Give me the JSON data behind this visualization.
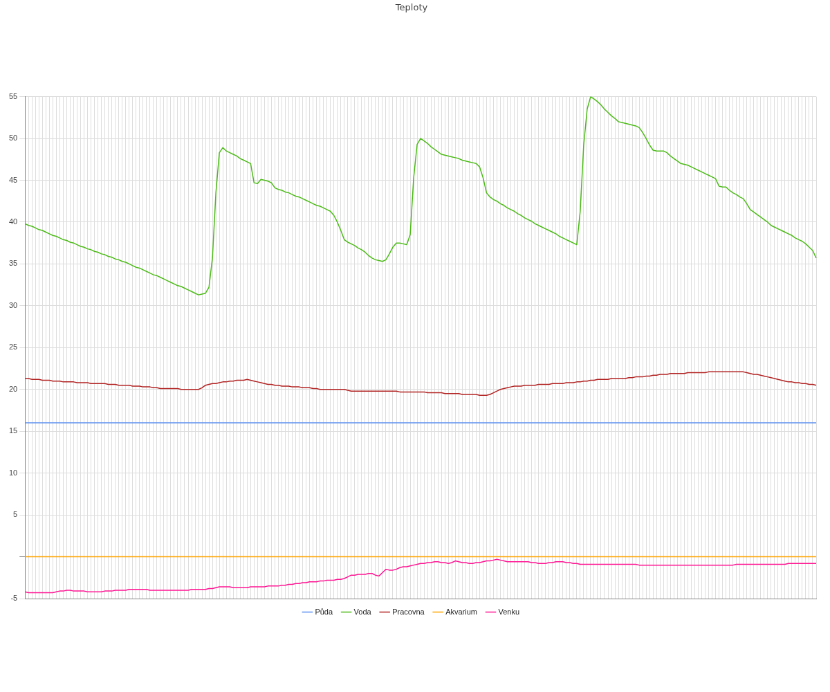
{
  "chart_data": {
    "type": "line",
    "title": "Teploty",
    "categories": [
      null,
      null,
      null,
      null,
      null,
      null,
      null,
      null,
      null,
      null,
      null,
      null,
      null,
      null,
      null,
      null,
      null,
      null,
      null,
      null,
      null,
      null,
      null,
      null,
      null,
      null,
      null,
      null,
      null,
      null,
      null,
      null,
      null,
      null,
      null,
      null,
      null,
      null,
      null,
      null,
      null,
      null,
      null,
      null,
      null,
      null,
      null,
      null,
      null,
      null,
      null,
      null,
      null,
      null,
      null,
      null,
      null,
      null,
      null,
      null,
      null,
      null,
      null,
      null,
      null,
      null,
      null,
      null,
      null,
      null,
      null,
      null,
      null,
      null,
      null,
      null,
      null,
      null,
      null,
      null,
      null,
      null,
      null,
      null,
      null,
      null,
      null,
      null,
      null,
      null,
      null,
      null,
      null,
      null,
      null,
      null,
      null,
      null,
      null,
      null,
      null,
      null,
      null,
      null,
      null,
      null,
      null,
      null,
      null,
      null,
      null,
      null,
      null,
      null,
      null,
      null,
      null,
      null,
      null,
      null,
      null,
      null,
      null,
      null,
      null,
      null,
      null,
      null,
      null,
      null,
      null,
      null,
      null,
      null,
      null,
      null,
      null,
      null,
      null,
      null,
      null,
      null,
      null,
      null,
      null,
      null,
      null,
      null,
      null,
      null,
      null,
      null,
      null,
      null,
      null,
      null,
      null,
      null,
      null,
      null,
      null,
      null,
      null,
      null,
      null,
      null,
      null,
      null,
      null,
      null,
      null,
      null,
      null,
      null,
      null,
      null,
      null,
      null,
      null,
      null,
      null,
      null,
      null,
      null,
      null,
      null,
      null,
      null,
      null,
      null,
      null,
      null,
      null,
      null,
      null,
      null,
      null,
      null,
      null,
      null,
      null,
      null,
      null,
      null,
      null,
      null,
      null,
      null,
      null,
      null,
      null,
      null,
      null,
      null,
      null,
      null,
      null,
      null,
      null,
      null,
      null,
      null,
      null,
      null,
      null,
      null,
      null,
      null,
      null
    ],
    "ylim": [
      -5,
      55
    ],
    "yticks": [
      -5,
      {
        "value": 0,
        "label": null
      },
      5,
      10,
      15,
      20,
      25,
      30,
      35,
      40,
      45,
      50,
      55
    ],
    "grid": true,
    "legend": "bottom",
    "tick_labels": "y",
    "marker": "none",
    "series": [
      {
        "name": "Půda",
        "color": "#5b8ff0",
        "values": [
          16,
          16,
          16,
          16,
          16,
          16,
          16,
          16,
          16,
          16,
          16,
          16,
          16,
          16,
          16,
          16,
          16,
          16,
          16,
          16,
          16,
          16,
          16,
          16,
          16,
          16,
          16,
          16,
          16,
          16,
          16,
          16,
          16,
          16,
          16,
          16,
          16,
          16,
          16,
          16,
          16,
          16,
          16,
          16,
          16,
          16,
          16,
          16,
          16,
          16,
          16,
          16,
          16,
          16,
          16,
          16,
          16,
          16,
          16,
          16,
          16,
          16,
          16,
          16,
          16,
          16,
          16,
          16,
          16,
          16,
          16,
          16,
          16,
          16,
          16,
          16,
          16,
          16,
          16,
          16,
          16,
          16,
          16,
          16,
          16,
          16,
          16,
          16,
          16,
          16,
          16,
          16,
          16,
          16,
          16,
          16,
          16,
          16,
          16,
          16,
          16,
          16,
          16,
          16,
          16,
          16,
          16,
          16,
          16,
          16,
          16,
          16,
          16,
          16,
          16,
          16,
          16,
          16,
          16,
          16,
          16,
          16,
          16,
          16,
          16,
          16,
          16,
          16,
          16,
          16,
          16,
          16,
          16,
          16,
          16,
          16,
          16,
          16,
          16,
          16,
          16,
          16,
          16,
          16,
          16,
          16,
          16,
          16,
          16,
          16,
          16,
          16,
          16,
          16,
          16,
          16,
          16,
          16,
          16,
          16,
          16,
          16,
          16,
          16,
          16,
          16,
          16,
          16,
          16,
          16,
          16,
          16,
          16,
          16,
          16,
          16,
          16,
          16,
          16,
          16,
          16,
          16,
          16,
          16,
          16,
          16,
          16,
          16,
          16,
          16,
          16,
          16,
          16,
          16,
          16,
          16,
          16,
          16,
          16,
          16,
          16,
          16,
          16,
          16,
          16,
          16,
          16,
          16,
          16,
          16,
          16,
          16,
          16,
          16,
          16,
          16,
          16,
          16,
          16,
          16,
          16,
          16,
          16,
          16,
          16,
          16,
          16,
          16,
          16
        ]
      },
      {
        "name": "Voda",
        "color": "#4cbb17",
        "values": [
          39.8,
          39.6,
          39.5,
          39.3,
          39.1,
          39.0,
          38.8,
          38.6,
          38.4,
          38.3,
          38.1,
          37.9,
          37.8,
          37.6,
          37.5,
          37.3,
          37.1,
          37.0,
          36.8,
          36.7,
          36.5,
          36.4,
          36.2,
          36.1,
          35.9,
          35.8,
          35.6,
          35.5,
          35.3,
          35.2,
          35.0,
          34.8,
          34.6,
          34.5,
          34.3,
          34.1,
          33.9,
          33.7,
          33.6,
          33.4,
          33.2,
          33.0,
          32.8,
          32.6,
          32.4,
          32.3,
          32.1,
          31.9,
          31.7,
          31.5,
          31.3,
          31.4,
          31.5,
          32.2,
          35.7,
          43.5,
          48.3,
          48.9,
          48.5,
          48.3,
          48.1,
          47.9,
          47.6,
          47.4,
          47.2,
          47.0,
          44.7,
          44.6,
          45.1,
          45.0,
          44.9,
          44.7,
          44.1,
          43.9,
          43.8,
          43.6,
          43.5,
          43.3,
          43.1,
          43.0,
          42.8,
          42.6,
          42.4,
          42.2,
          42.0,
          41.9,
          41.7,
          41.5,
          41.3,
          40.8,
          40.0,
          39.0,
          37.9,
          37.6,
          37.4,
          37.2,
          36.9,
          36.7,
          36.4,
          36.0,
          35.7,
          35.5,
          35.4,
          35.3,
          35.5,
          36.2,
          37.0,
          37.5,
          37.5,
          37.4,
          37.3,
          38.5,
          45.3,
          49.3,
          50.0,
          49.7,
          49.4,
          49.0,
          48.7,
          48.4,
          48.1,
          48.0,
          47.9,
          47.8,
          47.7,
          47.6,
          47.4,
          47.3,
          47.2,
          47.1,
          47.0,
          46.6,
          45.3,
          43.5,
          43.0,
          42.7,
          42.5,
          42.2,
          42.0,
          41.7,
          41.5,
          41.3,
          41.0,
          40.8,
          40.5,
          40.3,
          40.1,
          39.8,
          39.6,
          39.4,
          39.2,
          39.0,
          38.8,
          38.6,
          38.3,
          38.1,
          37.9,
          37.7,
          37.5,
          37.3,
          41.3,
          49.2,
          53.5,
          55.0,
          54.7,
          54.4,
          54.0,
          53.5,
          53.1,
          52.7,
          52.4,
          52.0,
          51.9,
          51.8,
          51.7,
          51.6,
          51.5,
          51.3,
          50.7,
          50.0,
          49.2,
          48.6,
          48.5,
          48.5,
          48.5,
          48.3,
          47.9,
          47.6,
          47.3,
          47.0,
          46.9,
          46.8,
          46.6,
          46.4,
          46.2,
          46.0,
          45.8,
          45.6,
          45.4,
          45.2,
          44.3,
          44.2,
          44.2,
          43.8,
          43.5,
          43.3,
          43.0,
          42.8,
          42.2,
          41.5,
          41.2,
          40.9,
          40.6,
          40.3,
          40.0,
          39.6,
          39.4,
          39.2,
          39.0,
          38.8,
          38.6,
          38.4,
          38.1,
          37.9,
          37.7,
          37.4,
          37.0,
          36.6,
          35.7
        ]
      },
      {
        "name": "Pracovna",
        "color": "#b22222",
        "values": [
          21.3,
          21.3,
          21.2,
          21.2,
          21.2,
          21.1,
          21.1,
          21.1,
          21.0,
          21.0,
          21.0,
          20.9,
          20.9,
          20.9,
          20.9,
          20.8,
          20.8,
          20.8,
          20.8,
          20.7,
          20.7,
          20.7,
          20.7,
          20.7,
          20.6,
          20.6,
          20.6,
          20.5,
          20.5,
          20.5,
          20.5,
          20.4,
          20.4,
          20.4,
          20.3,
          20.3,
          20.3,
          20.2,
          20.2,
          20.1,
          20.1,
          20.1,
          20.1,
          20.1,
          20.1,
          20.0,
          20.0,
          20.0,
          20.0,
          20.0,
          20.0,
          20.2,
          20.5,
          20.6,
          20.7,
          20.7,
          20.8,
          20.9,
          20.9,
          21.0,
          21.0,
          21.1,
          21.1,
          21.1,
          21.2,
          21.1,
          21.0,
          20.9,
          20.8,
          20.7,
          20.6,
          20.6,
          20.5,
          20.5,
          20.4,
          20.4,
          20.4,
          20.3,
          20.3,
          20.3,
          20.2,
          20.2,
          20.2,
          20.1,
          20.1,
          20.0,
          20.0,
          20.0,
          20.0,
          20.0,
          20.0,
          20.0,
          20.0,
          19.9,
          19.8,
          19.8,
          19.8,
          19.8,
          19.8,
          19.8,
          19.8,
          19.8,
          19.8,
          19.8,
          19.8,
          19.8,
          19.8,
          19.8,
          19.7,
          19.7,
          19.7,
          19.7,
          19.7,
          19.7,
          19.7,
          19.7,
          19.6,
          19.6,
          19.6,
          19.6,
          19.6,
          19.5,
          19.5,
          19.5,
          19.5,
          19.5,
          19.4,
          19.4,
          19.4,
          19.4,
          19.4,
          19.3,
          19.3,
          19.3,
          19.4,
          19.6,
          19.8,
          20.0,
          20.1,
          20.2,
          20.3,
          20.4,
          20.4,
          20.4,
          20.5,
          20.5,
          20.5,
          20.5,
          20.6,
          20.6,
          20.6,
          20.6,
          20.7,
          20.7,
          20.7,
          20.7,
          20.8,
          20.8,
          20.8,
          20.9,
          20.9,
          21.0,
          21.0,
          21.1,
          21.1,
          21.2,
          21.2,
          21.2,
          21.2,
          21.3,
          21.3,
          21.3,
          21.3,
          21.3,
          21.4,
          21.4,
          21.5,
          21.5,
          21.5,
          21.6,
          21.6,
          21.7,
          21.7,
          21.8,
          21.8,
          21.8,
          21.9,
          21.9,
          21.9,
          21.9,
          21.9,
          22.0,
          22.0,
          22.0,
          22.0,
          22.0,
          22.0,
          22.1,
          22.1,
          22.1,
          22.1,
          22.1,
          22.1,
          22.1,
          22.1,
          22.1,
          22.1,
          22.1,
          22.0,
          21.9,
          21.8,
          21.8,
          21.7,
          21.6,
          21.5,
          21.4,
          21.3,
          21.2,
          21.1,
          21.0,
          20.9,
          20.9,
          20.8,
          20.8,
          20.7,
          20.7,
          20.6,
          20.6,
          20.5
        ]
      },
      {
        "name": "Akvarium",
        "color": "#ffa500",
        "values": [
          0,
          0,
          0,
          0,
          0,
          0,
          0,
          0,
          0,
          0,
          0,
          0,
          0,
          0,
          0,
          0,
          0,
          0,
          0,
          0,
          0,
          0,
          0,
          0,
          0,
          0,
          0,
          0,
          0,
          0,
          0,
          0,
          0,
          0,
          0,
          0,
          0,
          0,
          0,
          0,
          0,
          0,
          0,
          0,
          0,
          0,
          0,
          0,
          0,
          0,
          0,
          0,
          0,
          0,
          0,
          0,
          0,
          0,
          0,
          0,
          0,
          0,
          0,
          0,
          0,
          0,
          0,
          0,
          0,
          0,
          0,
          0,
          0,
          0,
          0,
          0,
          0,
          0,
          0,
          0,
          0,
          0,
          0,
          0,
          0,
          0,
          0,
          0,
          0,
          0,
          0,
          0,
          0,
          0,
          0,
          0,
          0,
          0,
          0,
          0,
          0,
          0,
          0,
          0,
          0,
          0,
          0,
          0,
          0,
          0,
          0,
          0,
          0,
          0,
          0,
          0,
          0,
          0,
          0,
          0,
          0,
          0,
          0,
          0,
          0,
          0,
          0,
          0,
          0,
          0,
          0,
          0,
          0,
          0,
          0,
          0,
          0,
          0,
          0,
          0,
          0,
          0,
          0,
          0,
          0,
          0,
          0,
          0,
          0,
          0,
          0,
          0,
          0,
          0,
          0,
          0,
          0,
          0,
          0,
          0,
          0,
          0,
          0,
          0,
          0,
          0,
          0,
          0,
          0,
          0,
          0,
          0,
          0,
          0,
          0,
          0,
          0,
          0,
          0,
          0,
          0,
          0,
          0,
          0,
          0,
          0,
          0,
          0,
          0,
          0,
          0,
          0,
          0,
          0,
          0,
          0,
          0,
          0,
          0,
          0,
          0,
          0,
          0,
          0,
          0,
          0,
          0,
          0,
          0,
          0,
          0,
          0,
          0,
          0,
          0,
          0,
          0,
          0,
          0,
          0,
          0,
          0,
          0,
          0,
          0,
          0,
          0,
          0,
          0
        ]
      },
      {
        "name": "Venku",
        "color": "#ff1493",
        "values": [
          -4.2,
          -4.3,
          -4.3,
          -4.3,
          -4.3,
          -4.3,
          -4.3,
          -4.3,
          -4.3,
          -4.2,
          -4.1,
          -4.1,
          -4.0,
          -4.0,
          -4.1,
          -4.1,
          -4.1,
          -4.1,
          -4.2,
          -4.2,
          -4.2,
          -4.2,
          -4.2,
          -4.1,
          -4.1,
          -4.1,
          -4.0,
          -4.0,
          -4.0,
          -4.0,
          -3.9,
          -3.9,
          -3.9,
          -3.9,
          -3.9,
          -3.9,
          -4.0,
          -4.0,
          -4.0,
          -4.0,
          -4.0,
          -4.0,
          -4.0,
          -4.0,
          -4.0,
          -4.0,
          -4.0,
          -4.0,
          -3.9,
          -3.9,
          -3.9,
          -3.9,
          -3.9,
          -3.8,
          -3.8,
          -3.7,
          -3.6,
          -3.6,
          -3.6,
          -3.6,
          -3.7,
          -3.7,
          -3.7,
          -3.7,
          -3.7,
          -3.6,
          -3.6,
          -3.6,
          -3.6,
          -3.6,
          -3.5,
          -3.5,
          -3.5,
          -3.5,
          -3.4,
          -3.4,
          -3.3,
          -3.3,
          -3.2,
          -3.2,
          -3.1,
          -3.1,
          -3.0,
          -3.0,
          -3.0,
          -2.9,
          -2.9,
          -2.8,
          -2.8,
          -2.8,
          -2.7,
          -2.7,
          -2.6,
          -2.4,
          -2.2,
          -2.2,
          -2.1,
          -2.1,
          -2.1,
          -2.0,
          -2.0,
          -2.2,
          -2.3,
          -1.9,
          -1.5,
          -1.6,
          -1.6,
          -1.5,
          -1.3,
          -1.2,
          -1.2,
          -1.1,
          -1.0,
          -0.9,
          -0.8,
          -0.8,
          -0.7,
          -0.7,
          -0.6,
          -0.6,
          -0.7,
          -0.7,
          -0.8,
          -0.7,
          -0.5,
          -0.6,
          -0.7,
          -0.7,
          -0.8,
          -0.8,
          -0.7,
          -0.7,
          -0.6,
          -0.5,
          -0.5,
          -0.4,
          -0.3,
          -0.4,
          -0.5,
          -0.6,
          -0.6,
          -0.6,
          -0.6,
          -0.6,
          -0.6,
          -0.6,
          -0.7,
          -0.7,
          -0.8,
          -0.8,
          -0.8,
          -0.7,
          -0.7,
          -0.6,
          -0.6,
          -0.6,
          -0.7,
          -0.7,
          -0.8,
          -0.8,
          -0.9,
          -0.9,
          -0.9,
          -0.9,
          -0.9,
          -0.9,
          -0.9,
          -0.9,
          -0.9,
          -0.9,
          -0.9,
          -0.9,
          -0.9,
          -0.9,
          -0.9,
          -0.9,
          -0.9,
          -1.0,
          -1.0,
          -1.0,
          -1.0,
          -1.0,
          -1.0,
          -1.0,
          -1.0,
          -1.0,
          -1.0,
          -1.0,
          -1.0,
          -1.0,
          -1.0,
          -1.0,
          -1.0,
          -1.0,
          -1.0,
          -1.0,
          -1.0,
          -1.0,
          -1.0,
          -1.0,
          -1.0,
          -1.0,
          -1.0,
          -1.0,
          -1.0,
          -0.9,
          -0.9,
          -0.9,
          -0.9,
          -0.9,
          -0.9,
          -0.9,
          -0.9,
          -0.9,
          -0.9,
          -0.9,
          -0.9,
          -0.9,
          -0.9,
          -0.9,
          -0.8,
          -0.8,
          -0.8,
          -0.8,
          -0.8,
          -0.8,
          -0.8,
          -0.8,
          -0.8
        ]
      }
    ]
  }
}
